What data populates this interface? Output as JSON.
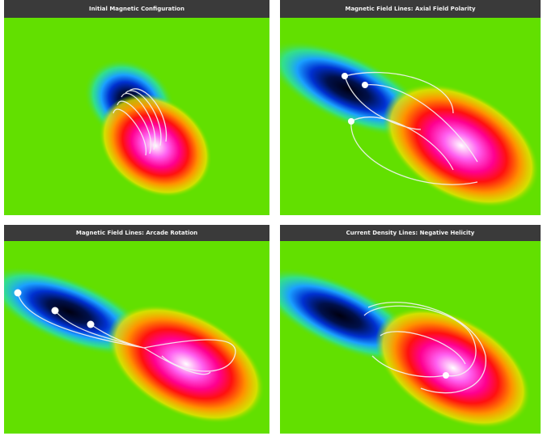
{
  "panels": [
    {
      "title": "Initial Magnetic Configuration"
    },
    {
      "title": "Magnetic Field Lines: Axial Field Polarity"
    },
    {
      "title": "Magnetic Field Lines: Arcade Rotation"
    },
    {
      "title": "Current Density Lines: Negative Helicity"
    }
  ]
}
